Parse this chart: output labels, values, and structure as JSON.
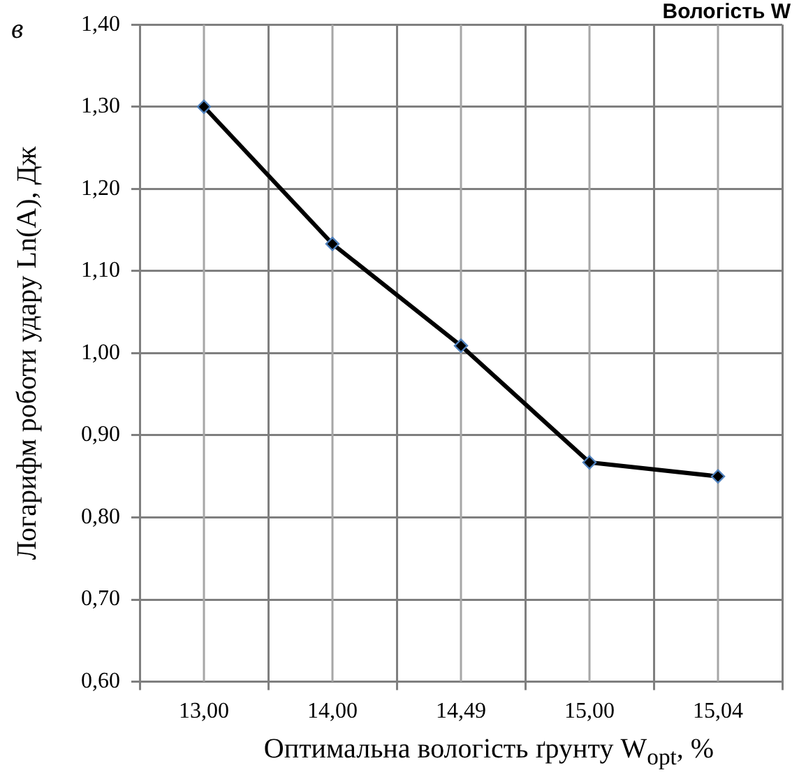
{
  "chart_data": {
    "type": "line",
    "xlabel": "Оптимальна вологість ґрунту W$_{opt}$, %",
    "ylabel": "Логарифм роботи удару Ln(A), Дж",
    "annotations": [
      "в",
      "Вологість W"
    ],
    "categories": [
      "13,00",
      "14,00",
      "14,49",
      "15,00",
      "15,04"
    ],
    "series": [
      {
        "color": "#000000",
        "values": [
          1.3,
          1.133,
          1.009,
          0.867,
          0.85
        ]
      }
    ],
    "ylim": [
      0.6,
      1.4
    ],
    "yticks": [
      {
        "value": 0.6,
        "label": "0,60"
      },
      {
        "value": 0.7,
        "label": "0,70"
      },
      {
        "value": 0.8,
        "label": "0,80"
      },
      {
        "value": 0.9,
        "label": "0,90"
      },
      {
        "value": 1.0,
        "label": "1,00"
      },
      {
        "value": 1.1,
        "label": "1,10"
      },
      {
        "value": 1.2,
        "label": "1,20"
      },
      {
        "value": 1.3,
        "label": "1,30"
      },
      {
        "value": 1.4,
        "label": "1,40"
      }
    ],
    "grid": true,
    "legend": false,
    "marker": "diamond",
    "line_style": "solid"
  }
}
